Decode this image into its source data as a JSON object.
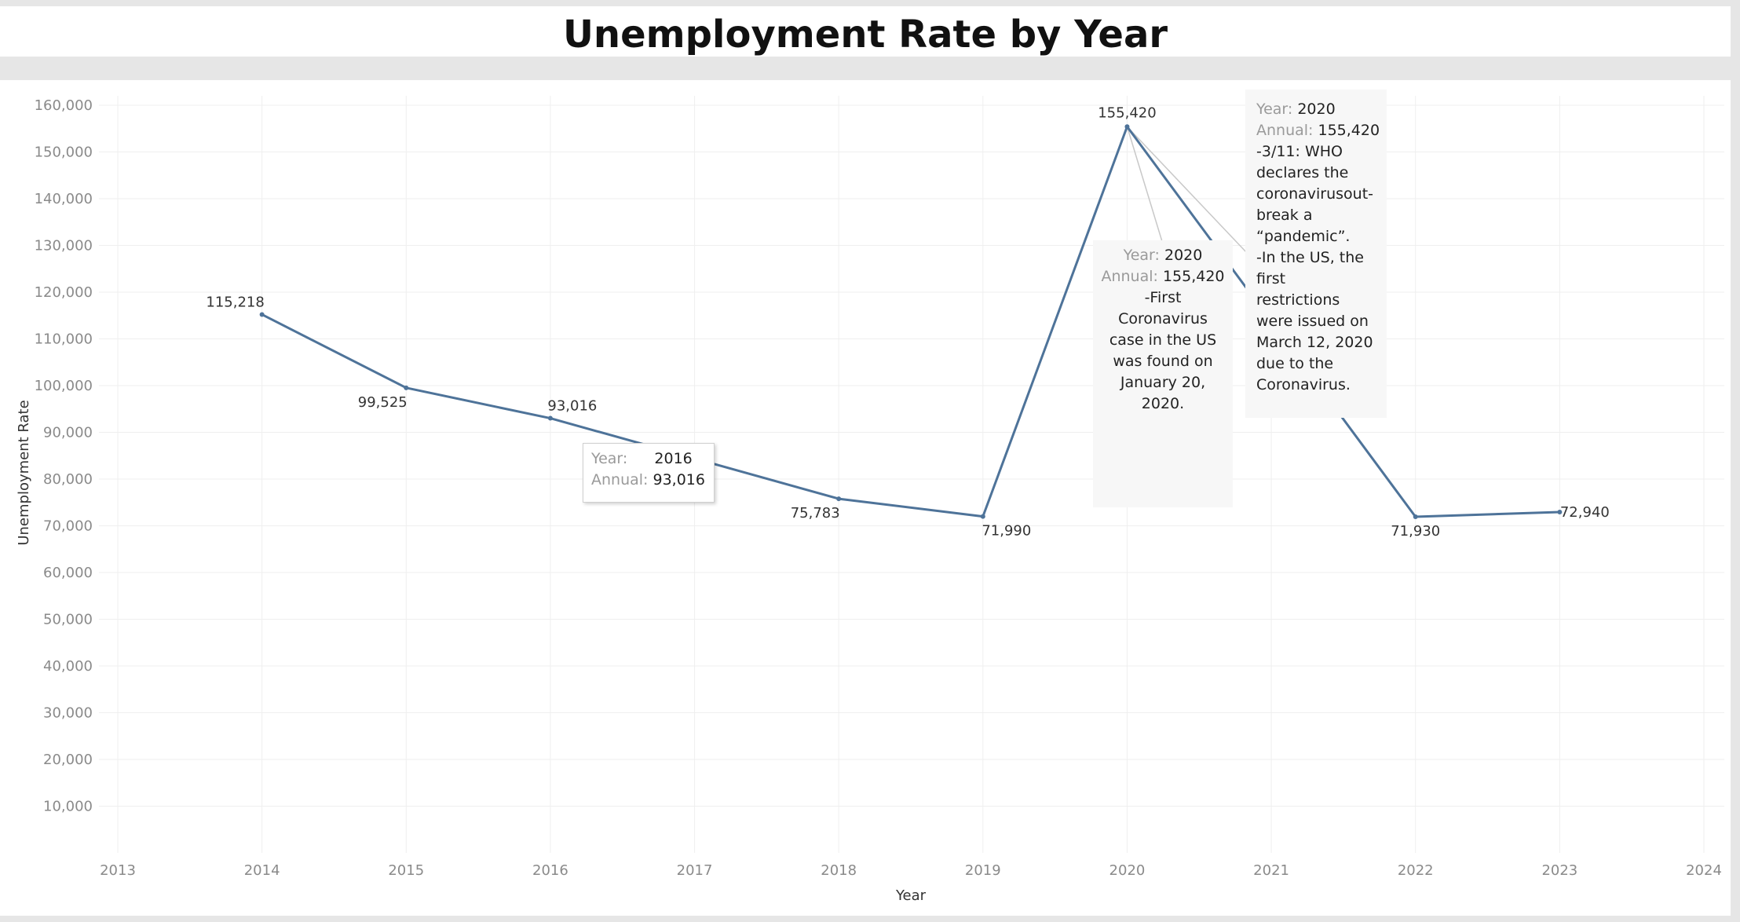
{
  "chart_data": {
    "type": "line",
    "title": "Unemployment Rate by Year",
    "xlabel": "Year",
    "ylabel": "Unemployment Rate",
    "x_ticks": [
      "2013",
      "2014",
      "2015",
      "2016",
      "2017",
      "2018",
      "2019",
      "2020",
      "2021",
      "2022",
      "2023",
      "2024"
    ],
    "y_ticks": [
      "10,000",
      "20,000",
      "30,000",
      "40,000",
      "50,000",
      "60,000",
      "70,000",
      "80,000",
      "90,000",
      "100,000",
      "110,000",
      "120,000",
      "130,000",
      "140,000",
      "150,000",
      "160,000"
    ],
    "xlim": [
      2013,
      2024
    ],
    "ylim": [
      0,
      160000
    ],
    "grid": true,
    "line_color": "#4e7399",
    "series": [
      {
        "points": [
          {
            "x": 2014,
            "y": 115218,
            "label": "115,218"
          },
          {
            "x": 2015,
            "y": 99525,
            "label": "99,525"
          },
          {
            "x": 2016,
            "y": 93016,
            "label": "93,016"
          },
          {
            "x": 2018,
            "y": 75783,
            "label": "75,783"
          },
          {
            "x": 2019,
            "y": 71990,
            "label": "71,990"
          },
          {
            "x": 2020,
            "y": 155420,
            "label": "155,420"
          },
          {
            "x": 2022,
            "y": 71930,
            "label": "71,930"
          },
          {
            "x": 2023,
            "y": 72940,
            "label": "72,940"
          }
        ]
      }
    ]
  },
  "tooltips": {
    "hover_2016": {
      "year_key": "Year:",
      "year_value": "2016",
      "annual_key": "Annual:",
      "annual_value": "93,016"
    }
  },
  "annotations": {
    "first_case": {
      "year_key": "Year:",
      "year_value": "2020",
      "annual_key": "Annual:",
      "annual_value": "155,420",
      "note": "-First\nCoronavirus\ncase in the US\nwas found on\nJanuary 20,\n2020."
    },
    "pandemic": {
      "year_key": "Year:",
      "year_value": "2020",
      "annual_key": "Annual:",
      "annual_value": "155,420",
      "note": "-3/11: WHO\ndeclares the\ncoronavirusout-\nbreak a\n“pandemic”.\n-In the US, the\nfirst\nrestrictions\nwere issued on\nMarch 12, 2020\ndue to the\nCoronavirus."
    }
  }
}
